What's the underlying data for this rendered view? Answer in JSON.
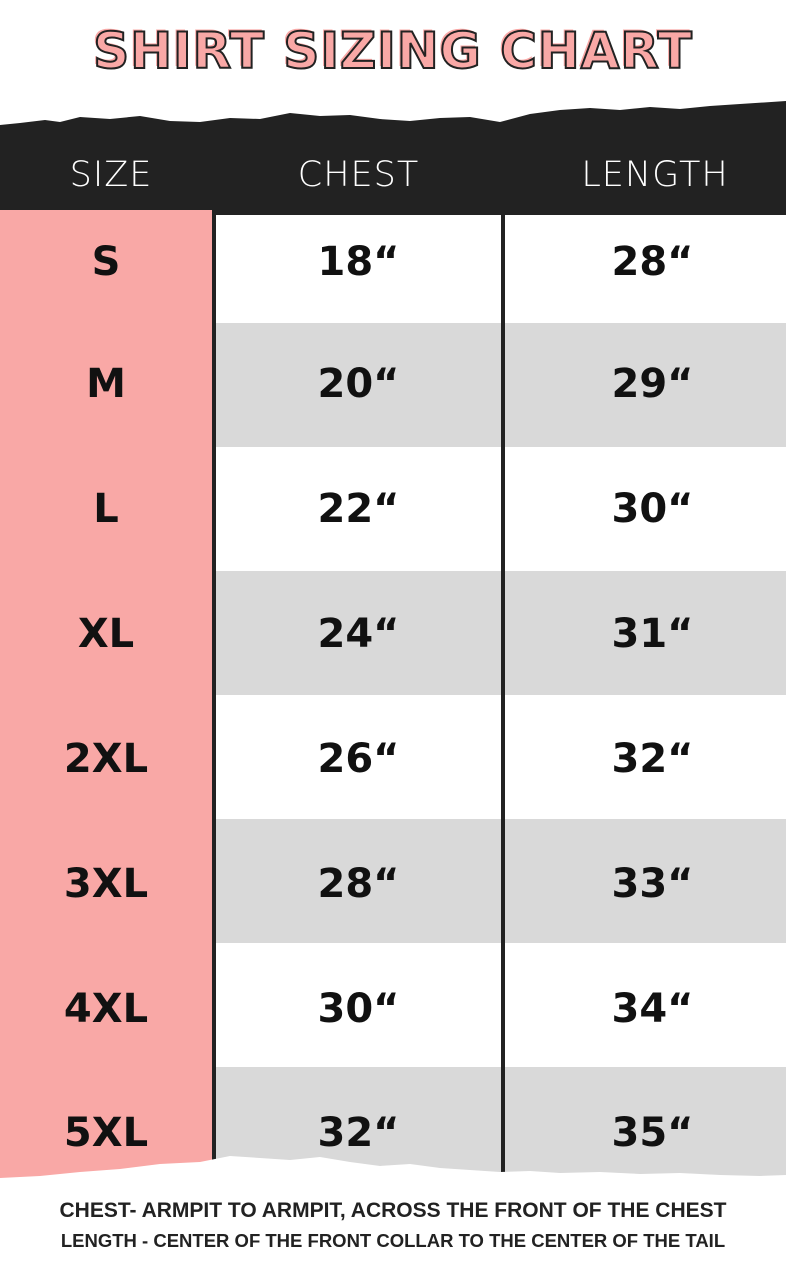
{
  "title": "SHIRT SIZING CHART",
  "headers": {
    "size": "SIZE",
    "chest": "CHEST",
    "length": "LENGTH"
  },
  "rows": [
    {
      "size": "S",
      "chest": "18“",
      "length": "28“"
    },
    {
      "size": "M",
      "chest": "20“",
      "length": "29“"
    },
    {
      "size": "L",
      "chest": "22“",
      "length": "30“"
    },
    {
      "size": "XL",
      "chest": "24“",
      "length": "31“"
    },
    {
      "size": "2XL",
      "chest": "26“",
      "length": "32“"
    },
    {
      "size": "3XL",
      "chest": "28“",
      "length": "33“"
    },
    {
      "size": "4XL",
      "chest": "30“",
      "length": "34“"
    },
    {
      "size": "5XL",
      "chest": "32“",
      "length": "35“"
    }
  ],
  "notes": {
    "chest": "CHEST- ARMPIT TO ARMPIT, ACROSS THE FRONT OF THE CHEST",
    "length": "LENGTH - CENTER OF THE FRONT COLLAR TO THE CENTER OF THE TAIL"
  },
  "colors": {
    "accent": "#f9a8a6",
    "dark": "#222222",
    "stripe": "#d9d9d9"
  }
}
